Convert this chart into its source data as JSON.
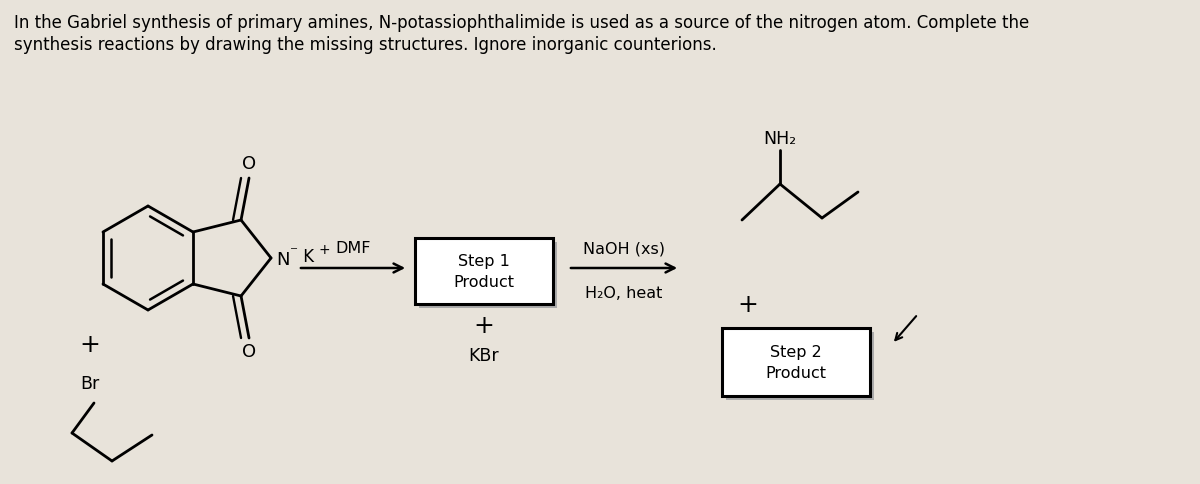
{
  "title_line1": "In the Gabriel synthesis of primary amines, N-potassiophthalimide is used as a source of the nitrogen atom. Complete the",
  "title_line2": "synthesis reactions by drawing the missing structures. Ignore inorganic counterions.",
  "bg_color": "#e8e3da",
  "text_color": "#000000",
  "box1_label": "Step 1\nProduct",
  "box2_label": "Step 2\nProduct",
  "arrow1_above": "DMF",
  "arrow2_above": "NaOH (xs)",
  "arrow2_below": "H₂O, heat",
  "plus_sign": "+",
  "kbr_text": "KBr",
  "nh2_text": "NH₂",
  "br_text": "Br",
  "o_text": "O",
  "N_text": "N",
  "K_text": "K"
}
